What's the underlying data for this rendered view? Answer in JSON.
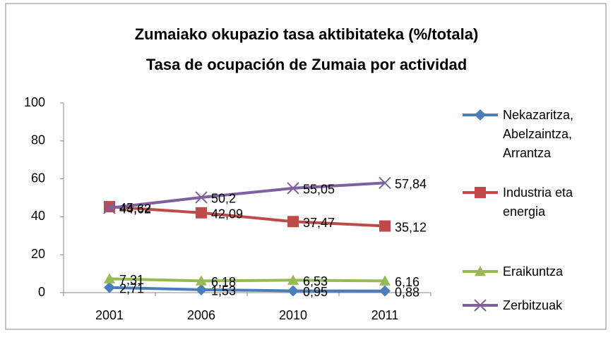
{
  "chart_data": {
    "type": "line",
    "title": "Zumaiako okupazio tasa aktibitateka (%/totala)",
    "subtitle": "Tasa de ocupación de Zumaia por actividad",
    "categories": [
      "2001",
      "2006",
      "2010",
      "2011"
    ],
    "ylim": [
      0,
      100
    ],
    "yticks": [
      0,
      20,
      40,
      60,
      80,
      100
    ],
    "grid": false,
    "legend": "right",
    "series": [
      {
        "name": "Nekazaritza, Abelzaintza, Arrantza",
        "color": "#4a7ebb",
        "marker": "diamond",
        "values": [
          2.71,
          1.53,
          0.95,
          0.88
        ],
        "value_labels": [
          "2,71",
          "1,53",
          "0,95",
          "0,88"
        ]
      },
      {
        "name": "Industria eta energia",
        "color": "#be4b48",
        "marker": "square",
        "values": [
          45.32,
          42.09,
          37.47,
          35.12
        ],
        "value_labels": [
          "45,32",
          "42,09",
          "37,47",
          "35,12"
        ]
      },
      {
        "name": "Eraikuntza",
        "color": "#98b954",
        "marker": "triangle",
        "values": [
          7.31,
          6.18,
          6.53,
          6.16
        ],
        "value_labels": [
          "7,31",
          "6,18",
          "6,53",
          "6,16"
        ]
      },
      {
        "name": "Zerbitzuak",
        "color": "#7d60a0",
        "marker": "x",
        "values": [
          44.62,
          50.2,
          55.05,
          57.84
        ],
        "value_labels": [
          "44,62",
          "50,2",
          "55,05",
          "57,84"
        ]
      }
    ]
  }
}
